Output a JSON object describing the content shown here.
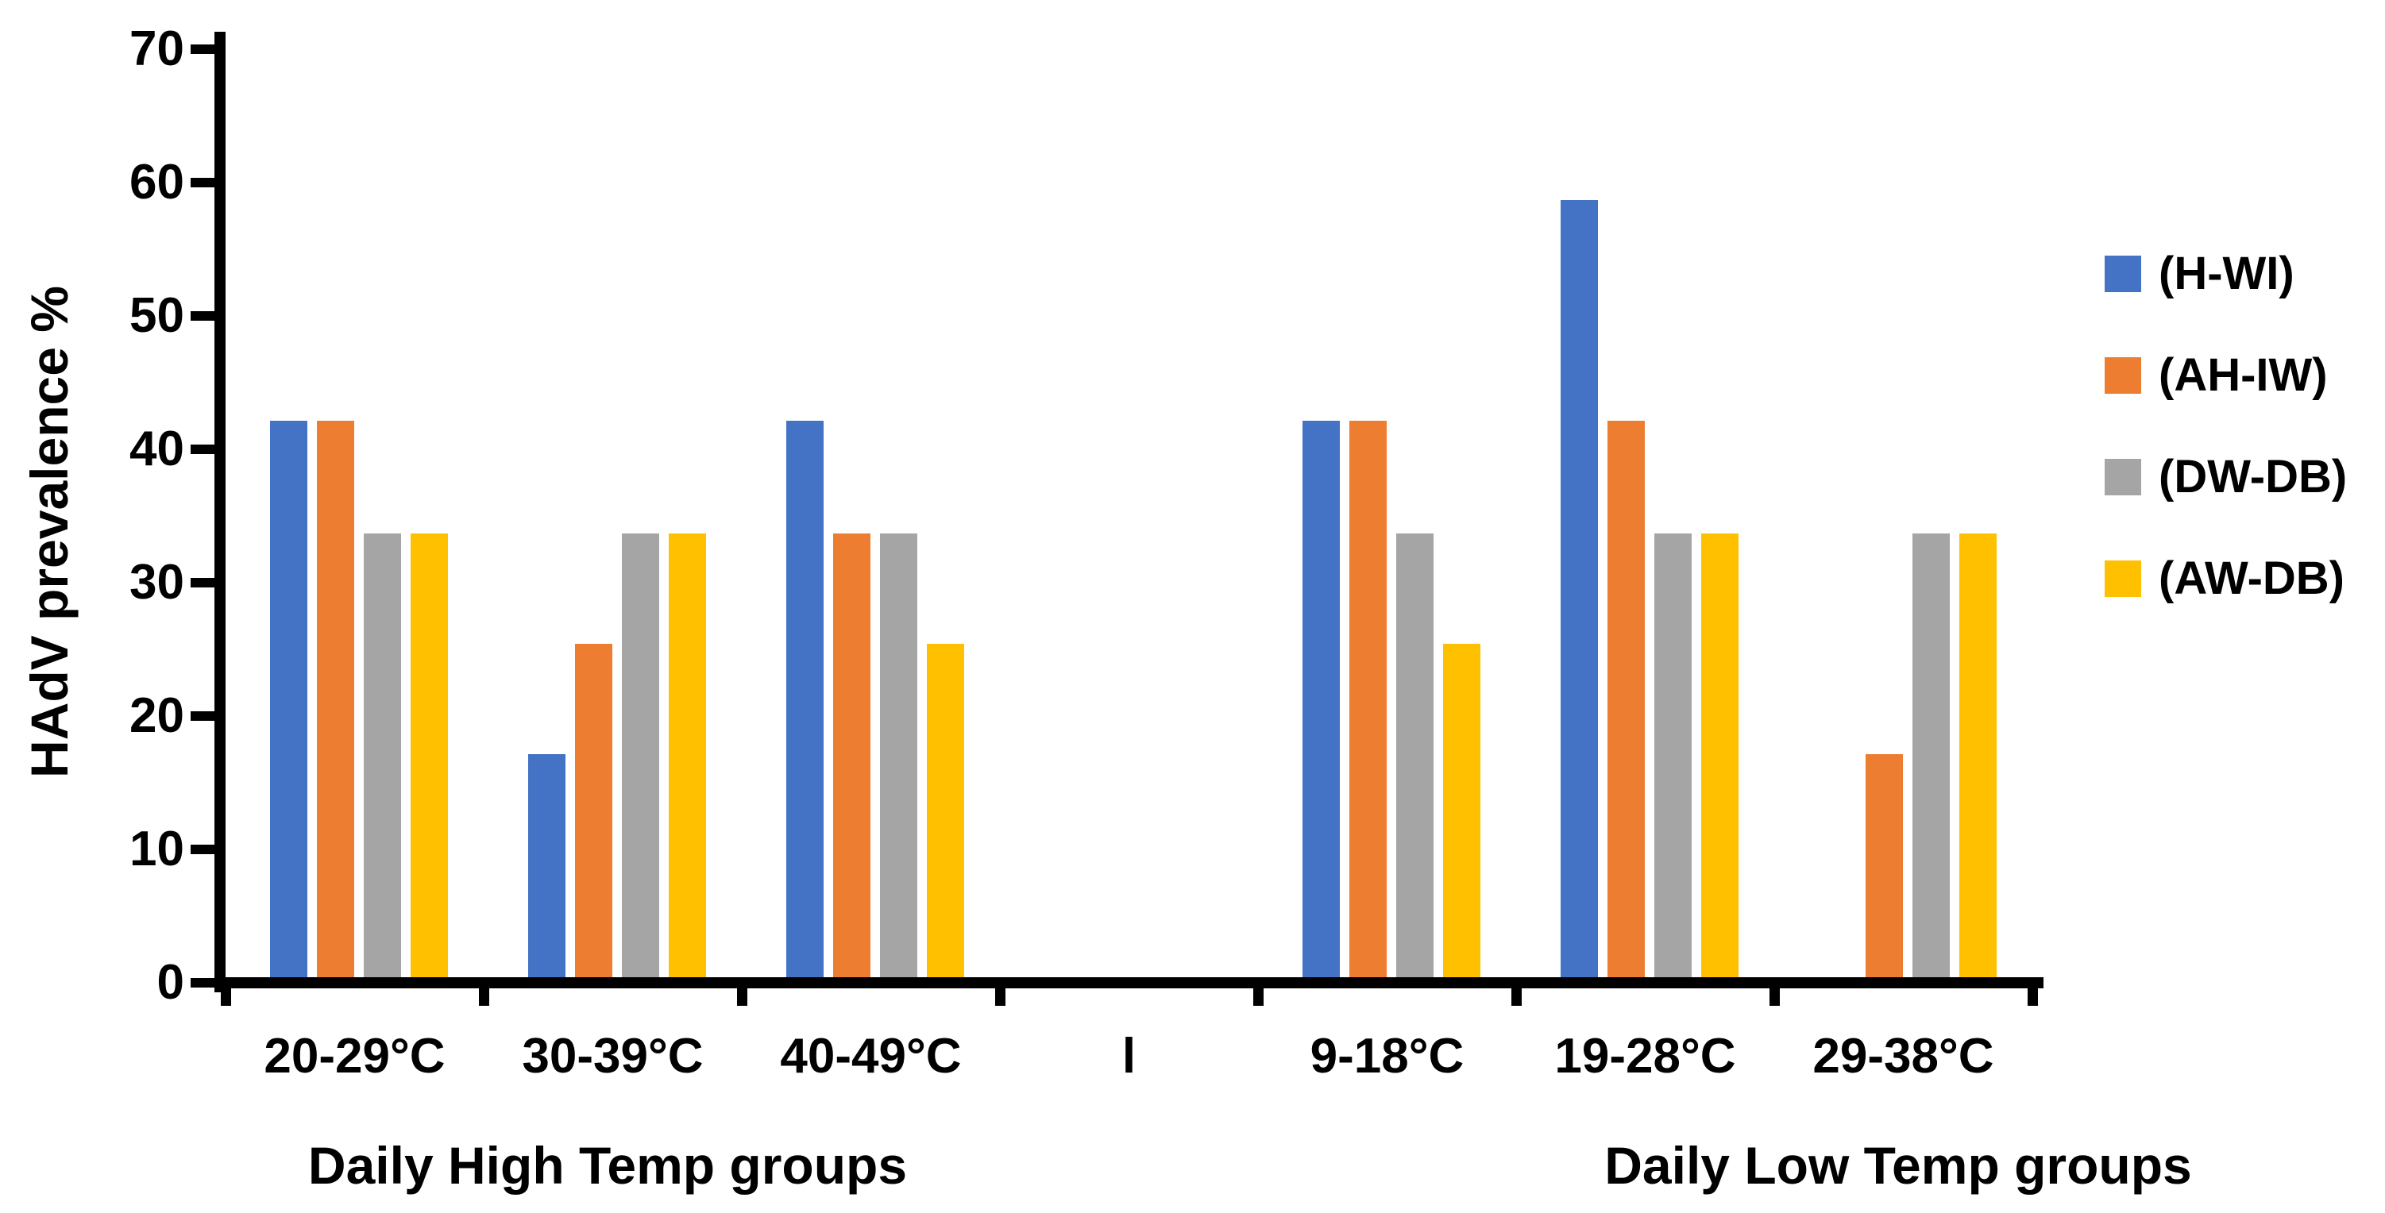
{
  "chart_data": {
    "type": "bar",
    "title": "",
    "ylabel": "HAdV prevalence %",
    "xlabel_left": "Daily High Temp groups",
    "xlabel_right": "Daily Low Temp groups",
    "ylim": [
      0,
      70
    ],
    "yticks": [
      0,
      10,
      20,
      30,
      40,
      50,
      60,
      70
    ],
    "grid": false,
    "legend_position": "right",
    "categories": [
      "20-29°C",
      "30-39°C",
      "40-49°C",
      "l",
      "9-18°C",
      "19-28°C",
      "29-38°C"
    ],
    "series": [
      {
        "name": "(H-WI)",
        "color": "#4472C4",
        "values": [
          41.7,
          16.7,
          41.7,
          0,
          41.7,
          58.3,
          0
        ]
      },
      {
        "name": "(AH-IW)",
        "color": "#ED7D31",
        "values": [
          41.7,
          25.0,
          33.3,
          0,
          41.7,
          41.7,
          16.7
        ]
      },
      {
        "name": "(DW-DB)",
        "color": "#A5A5A5",
        "values": [
          33.3,
          33.3,
          33.3,
          0,
          33.3,
          33.3,
          33.3
        ]
      },
      {
        "name": "(AW-DB)",
        "color": "#FFC000",
        "values": [
          33.3,
          33.3,
          25.0,
          0,
          25.0,
          33.3,
          33.3
        ]
      }
    ]
  },
  "axes": {
    "y_title": "HAdV prevalence %",
    "x_title_left": "Daily High Temp groups",
    "x_title_right": "Daily Low Temp groups"
  },
  "colors": {
    "axis": "#000000",
    "text": "#000000",
    "background": "#FFFFFF"
  }
}
